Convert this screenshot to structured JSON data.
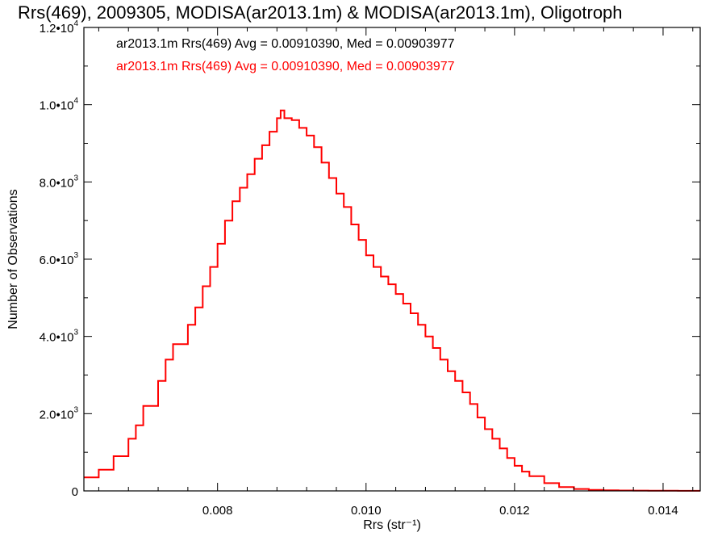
{
  "chart_data": {
    "type": "line",
    "title": "Rrs(469), 2009305, MODISA(ar2013.1m) & MODISA(ar2013.1m), Oligotroph",
    "xlabel": "Rrs (str⁻¹)",
    "ylabel": "Number of Observations",
    "xlim": [
      0.0062,
      0.0145
    ],
    "ylim": [
      0,
      12000
    ],
    "x_ticks": [
      {
        "value": 0.008,
        "label": "0.008"
      },
      {
        "value": 0.01,
        "label": "0.010"
      },
      {
        "value": 0.012,
        "label": "0.012"
      },
      {
        "value": 0.014,
        "label": "0.014"
      }
    ],
    "y_ticks": [
      {
        "value": 0,
        "mant": "0",
        "exp": ""
      },
      {
        "value": 2000,
        "mant": "2.0•10",
        "exp": "3"
      },
      {
        "value": 4000,
        "mant": "4.0•10",
        "exp": "3"
      },
      {
        "value": 6000,
        "mant": "6.0•10",
        "exp": "3"
      },
      {
        "value": 8000,
        "mant": "8.0•10",
        "exp": "3"
      },
      {
        "value": 10000,
        "mant": "1.0•10",
        "exp": "4"
      },
      {
        "value": 12000,
        "mant": "1.2•10",
        "exp": "4"
      }
    ],
    "legend": [
      {
        "text": "ar2013.1m Rrs(469) Avg = 0.00910390, Med = 0.00903977",
        "color": "#000000"
      },
      {
        "text": "ar2013.1m Rrs(469) Avg = 0.00910390, Med = 0.00903977",
        "color": "#ff0000"
      }
    ],
    "legend_position": "top-left",
    "grid": false,
    "series": [
      {
        "color": "#ff0000",
        "x": [
          0.0062,
          0.0064,
          0.0066,
          0.0068,
          0.0069,
          0.007,
          0.0072,
          0.0073,
          0.0074,
          0.0076,
          0.0077,
          0.0078,
          0.0079,
          0.008,
          0.0081,
          0.0082,
          0.0083,
          0.0084,
          0.0085,
          0.0086,
          0.0087,
          0.0088,
          0.00885,
          0.0089,
          0.009,
          0.0091,
          0.0092,
          0.0093,
          0.0094,
          0.0095,
          0.0096,
          0.0097,
          0.0098,
          0.0099,
          0.01,
          0.0101,
          0.0102,
          0.0103,
          0.0104,
          0.0105,
          0.0106,
          0.0107,
          0.0108,
          0.0109,
          0.011,
          0.0111,
          0.0112,
          0.0113,
          0.0114,
          0.0115,
          0.0116,
          0.0117,
          0.0118,
          0.0119,
          0.012,
          0.0121,
          0.0122,
          0.0124,
          0.0126,
          0.0128,
          0.013,
          0.0132,
          0.0134,
          0.0136,
          0.0138,
          0.014,
          0.0142,
          0.0145
        ],
        "y": [
          350,
          550,
          900,
          1350,
          1700,
          2200,
          2850,
          3400,
          3800,
          4300,
          4750,
          5300,
          5800,
          6400,
          7000,
          7500,
          7850,
          8200,
          8600,
          8950,
          9300,
          9650,
          9850,
          9650,
          9600,
          9400,
          9200,
          8900,
          8500,
          8100,
          7700,
          7350,
          6900,
          6500,
          6100,
          5800,
          5550,
          5350,
          5100,
          4850,
          4600,
          4300,
          4000,
          3700,
          3400,
          3100,
          2850,
          2550,
          2250,
          1900,
          1600,
          1350,
          1100,
          850,
          650,
          500,
          380,
          200,
          100,
          50,
          25,
          15,
          10,
          8,
          5,
          4,
          3,
          2
        ]
      }
    ]
  }
}
